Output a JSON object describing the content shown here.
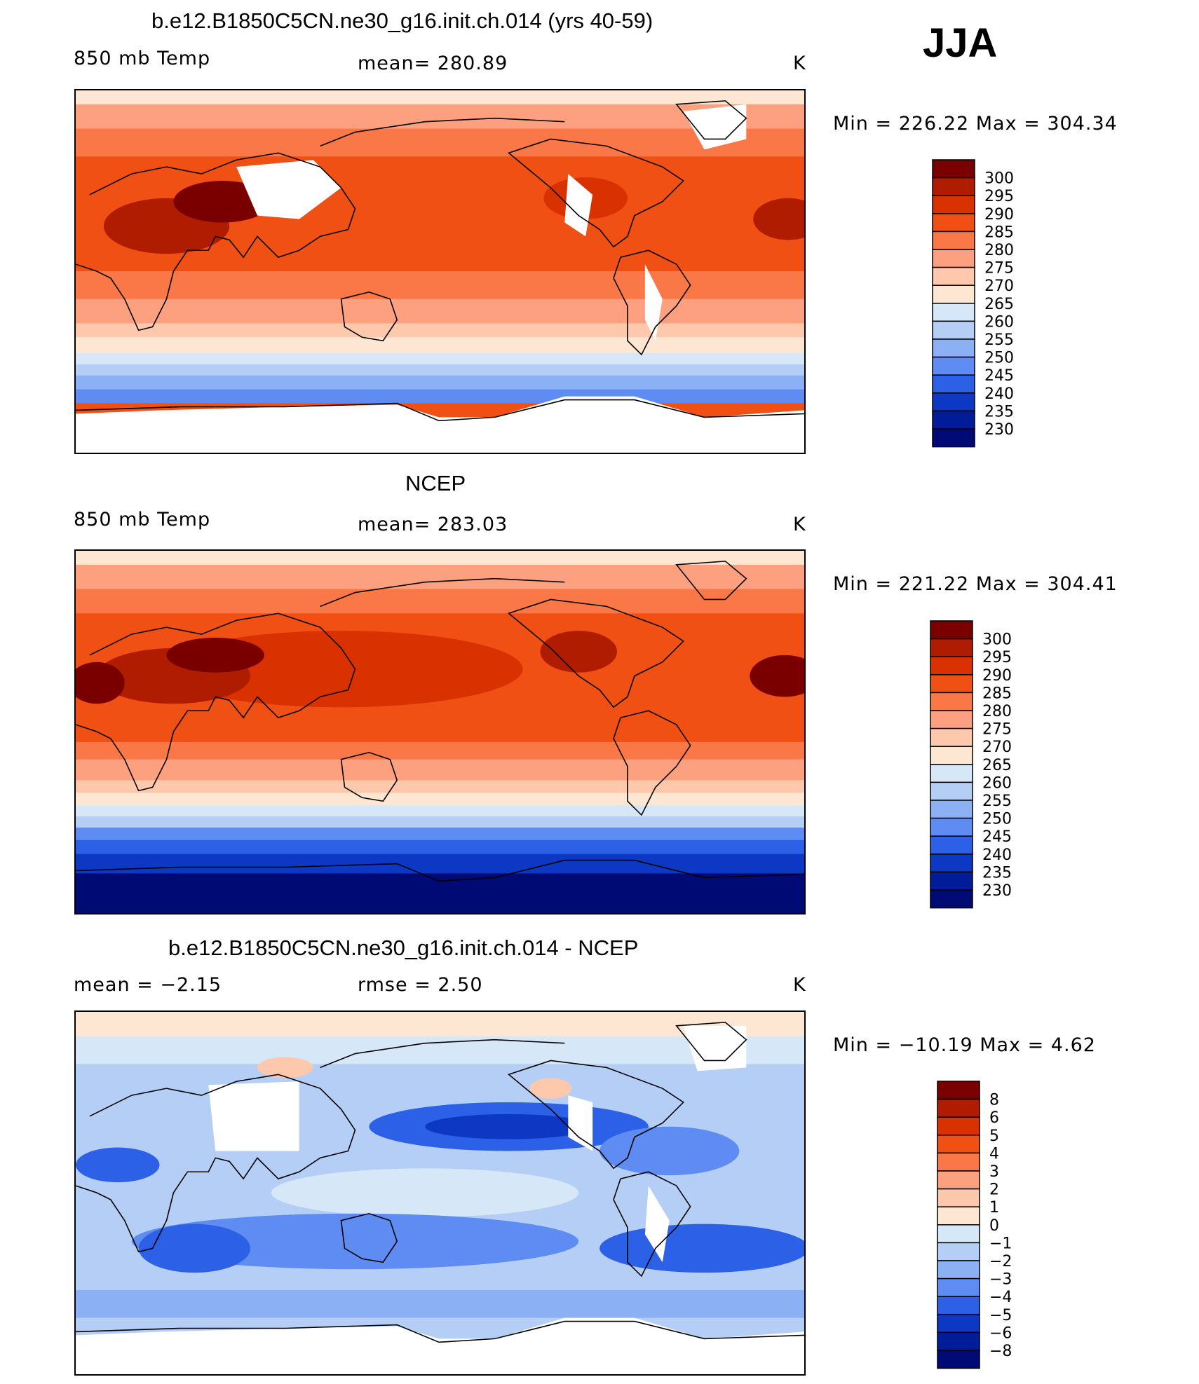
{
  "season": "JJA",
  "panels": [
    {
      "id": "model",
      "title": "b.e12.B1850C5CN.ne30_g16.init.ch.014 (yrs 40-59)",
      "left_label": "850 mb Temp",
      "center_label": "mean=  280.89",
      "units": "K",
      "minmax": "Min  =  226.22  Max  =  304.34",
      "legend": [
        "300",
        "295",
        "290",
        "285",
        "280",
        "275",
        "270",
        "265",
        "260",
        "255",
        "250",
        "245",
        "240",
        "235",
        "230"
      ]
    },
    {
      "id": "obs",
      "title": "NCEP",
      "left_label": "850 mb Temp",
      "center_label": "mean=  283.03",
      "units": "K",
      "minmax": "Min  =  221.22  Max  =  304.41",
      "legend": [
        "300",
        "295",
        "290",
        "285",
        "280",
        "275",
        "270",
        "265",
        "260",
        "255",
        "250",
        "245",
        "240",
        "235",
        "230"
      ]
    },
    {
      "id": "diff",
      "title": "b.e12.B1850C5CN.ne30_g16.init.ch.014 - NCEP",
      "left_label": "mean  =    −2.15",
      "center_label": "rmse  =     2.50",
      "units": "K",
      "minmax": "Min  =  −10.19  Max  =     4.62",
      "legend": [
        "8",
        "6",
        "5",
        "4",
        "3",
        "2",
        "1",
        "0",
        "−1",
        "−2",
        "−3",
        "−4",
        "−5",
        "−6",
        "−8"
      ]
    }
  ],
  "colors": {
    "abs_scale": [
      "#7a0000",
      "#b01c00",
      "#d93200",
      "#f05014",
      "#fa7848",
      "#fca080",
      "#fdc8ac",
      "#fde6d2",
      "#d6e8f8",
      "#b4cef6",
      "#8cb0f4",
      "#5e8cf2",
      "#2c60e6",
      "#0c38c4",
      "#001c98",
      "#000a74"
    ],
    "diff_scale": [
      "#7a0000",
      "#b01c00",
      "#d93200",
      "#f05014",
      "#fa7848",
      "#fca080",
      "#fdc8ac",
      "#fde6d2",
      "#d6e8f8",
      "#b4cef6",
      "#8cb0f4",
      "#5e8cf2",
      "#2c60e6",
      "#0c38c4",
      "#001c98",
      "#000a74"
    ]
  }
}
